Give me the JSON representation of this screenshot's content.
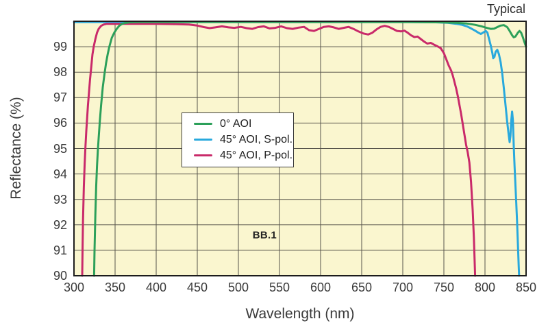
{
  "annotations": {
    "typical": "Typical",
    "chart_label": "BB.1",
    "chart_label_pos_nm": 532,
    "chart_label_pos_pct": 91.6
  },
  "axes": {
    "x": {
      "title": "Wavelength (nm)",
      "ticks": [
        300,
        350,
        400,
        450,
        500,
        550,
        600,
        650,
        700,
        750,
        800,
        850
      ]
    },
    "y": {
      "title": "Reflectance (%)",
      "ticks": [
        99,
        98,
        97,
        96,
        95,
        94,
        93,
        92,
        91,
        90
      ]
    }
  },
  "colors": {
    "plot_bg": "#faf6cf",
    "grid": "#57544b",
    "frame": "#1c1c1c",
    "text": "#3a3a3a",
    "legend_border": "#3a3a3a",
    "green": "#2ca05a",
    "cyan": "#29a9dd",
    "pink": "#c92a6a"
  },
  "chart_data": {
    "type": "line",
    "title": "Typical",
    "xlabel": "Wavelength (nm)",
    "ylabel": "Reflectance (%)",
    "xlim": [
      300,
      850
    ],
    "ylim": [
      90,
      100
    ],
    "grid": true,
    "grid_step_x_nm": 50,
    "grid_step_y_pct": 1,
    "legend_position": "upper-left-inside",
    "annotations": [
      {
        "text": "BB.1",
        "x": 532,
        "y": 91.6
      },
      {
        "text": "Typical",
        "position": "top-right-outside"
      }
    ],
    "series": [
      {
        "id": "0-aoi",
        "name": "0° AOI",
        "color": "#2ca05a",
        "points": [
          [
            324.5,
            90
          ],
          [
            325,
            91
          ],
          [
            326,
            92.4
          ],
          [
            327,
            93.5
          ],
          [
            328,
            94.3
          ],
          [
            329,
            94.9
          ],
          [
            330,
            95.4
          ],
          [
            331.5,
            96.1
          ],
          [
            333,
            96.7
          ],
          [
            335,
            97.4
          ],
          [
            337,
            97.9
          ],
          [
            339,
            98.35
          ],
          [
            341,
            98.7
          ],
          [
            343,
            99.0
          ],
          [
            346,
            99.35
          ],
          [
            349,
            99.55
          ],
          [
            352,
            99.7
          ],
          [
            355,
            99.82
          ],
          [
            358,
            99.89
          ],
          [
            362,
            99.93
          ],
          [
            368,
            99.96
          ],
          [
            380,
            99.97
          ],
          [
            420,
            99.97
          ],
          [
            480,
            99.97
          ],
          [
            540,
            99.97
          ],
          [
            600,
            99.97
          ],
          [
            660,
            99.97
          ],
          [
            710,
            99.97
          ],
          [
            745,
            99.96
          ],
          [
            765,
            99.94
          ],
          [
            778,
            99.91
          ],
          [
            788,
            99.86
          ],
          [
            796,
            99.8
          ],
          [
            802,
            99.74
          ],
          [
            807,
            99.7
          ],
          [
            811,
            99.71
          ],
          [
            815,
            99.77
          ],
          [
            819,
            99.83
          ],
          [
            823,
            99.85
          ],
          [
            827,
            99.77
          ],
          [
            830,
            99.62
          ],
          [
            833,
            99.45
          ],
          [
            835,
            99.37
          ],
          [
            837,
            99.4
          ],
          [
            840,
            99.55
          ],
          [
            842,
            99.62
          ],
          [
            844,
            99.55
          ],
          [
            846,
            99.38
          ],
          [
            848,
            99.18
          ],
          [
            850,
            99.0
          ]
        ]
      },
      {
        "id": "45-aoi-s-pol",
        "name": "45° AOI, S-pol.",
        "color": "#29a9dd",
        "points": [
          [
            300,
            99.97
          ],
          [
            600,
            99.97
          ],
          [
            700,
            99.97
          ],
          [
            740,
            99.96
          ],
          [
            755,
            99.94
          ],
          [
            765,
            99.9
          ],
          [
            772,
            99.86
          ],
          [
            778,
            99.8
          ],
          [
            783,
            99.72
          ],
          [
            788,
            99.63
          ],
          [
            792,
            99.55
          ],
          [
            795,
            99.5
          ],
          [
            798,
            99.56
          ],
          [
            801,
            99.62
          ],
          [
            803,
            99.55
          ],
          [
            805,
            99.3
          ],
          [
            807,
            99.05
          ],
          [
            809,
            98.75
          ],
          [
            810,
            98.55
          ],
          [
            811.5,
            98.6
          ],
          [
            813,
            98.8
          ],
          [
            815,
            98.88
          ],
          [
            817,
            98.7
          ],
          [
            819,
            98.4
          ],
          [
            821,
            97.95
          ],
          [
            823,
            97.35
          ],
          [
            825,
            96.7
          ],
          [
            827,
            96.05
          ],
          [
            829,
            95.5
          ],
          [
            830,
            95.25
          ],
          [
            831,
            95.5
          ],
          [
            832,
            96.1
          ],
          [
            833,
            96.45
          ],
          [
            834,
            96.1
          ],
          [
            835,
            95.1
          ],
          [
            836,
            94.3
          ],
          [
            837,
            93.6
          ],
          [
            838,
            92.9
          ],
          [
            839,
            92.15
          ],
          [
            840,
            91.3
          ],
          [
            841,
            90.4
          ],
          [
            841.5,
            90
          ]
        ]
      },
      {
        "id": "45-aoi-p-pol",
        "name": "45° AOI, P-pol.",
        "color": "#c92a6a",
        "points": [
          [
            310,
            90
          ],
          [
            310.5,
            91.2
          ],
          [
            311,
            92.2
          ],
          [
            312,
            93.5
          ],
          [
            313,
            94.4
          ],
          [
            314,
            95.1
          ],
          [
            315,
            95.7
          ],
          [
            316,
            96.2
          ],
          [
            317,
            96.7
          ],
          [
            318,
            97.1
          ],
          [
            319.5,
            97.7
          ],
          [
            321,
            98.2
          ],
          [
            322.5,
            98.7
          ],
          [
            324,
            99.0
          ],
          [
            326,
            99.3
          ],
          [
            328,
            99.55
          ],
          [
            330,
            99.7
          ],
          [
            333,
            99.82
          ],
          [
            336,
            99.87
          ],
          [
            340,
            99.9
          ],
          [
            360,
            99.9
          ],
          [
            380,
            99.9
          ],
          [
            400,
            99.9
          ],
          [
            420,
            99.89
          ],
          [
            440,
            99.87
          ],
          [
            450,
            99.83
          ],
          [
            458,
            99.77
          ],
          [
            465,
            99.73
          ],
          [
            472,
            99.76
          ],
          [
            480,
            99.8
          ],
          [
            488,
            99.76
          ],
          [
            495,
            99.74
          ],
          [
            503,
            99.78
          ],
          [
            510,
            99.73
          ],
          [
            517,
            99.7
          ],
          [
            524,
            99.77
          ],
          [
            531,
            99.8
          ],
          [
            538,
            99.72
          ],
          [
            545,
            99.74
          ],
          [
            552,
            99.8
          ],
          [
            559,
            99.73
          ],
          [
            566,
            99.7
          ],
          [
            573,
            99.75
          ],
          [
            580,
            99.78
          ],
          [
            586,
            99.65
          ],
          [
            592,
            99.62
          ],
          [
            598,
            99.7
          ],
          [
            604,
            99.78
          ],
          [
            610,
            99.8
          ],
          [
            616,
            99.76
          ],
          [
            622,
            99.7
          ],
          [
            628,
            99.74
          ],
          [
            634,
            99.78
          ],
          [
            640,
            99.7
          ],
          [
            646,
            99.6
          ],
          [
            652,
            99.52
          ],
          [
            658,
            99.48
          ],
          [
            663,
            99.55
          ],
          [
            668,
            99.68
          ],
          [
            673,
            99.78
          ],
          [
            678,
            99.82
          ],
          [
            683,
            99.78
          ],
          [
            688,
            99.7
          ],
          [
            693,
            99.62
          ],
          [
            698,
            99.6
          ],
          [
            702,
            99.63
          ],
          [
            706,
            99.55
          ],
          [
            710,
            99.45
          ],
          [
            714,
            99.38
          ],
          [
            718,
            99.4
          ],
          [
            722,
            99.3
          ],
          [
            726,
            99.2
          ],
          [
            730,
            99.12
          ],
          [
            734,
            99.15
          ],
          [
            738,
            99.08
          ],
          [
            742,
            99.02
          ],
          [
            746,
            98.95
          ],
          [
            750,
            98.75
          ],
          [
            753,
            98.5
          ],
          [
            756,
            98.25
          ],
          [
            759,
            98.05
          ],
          [
            761,
            97.85
          ],
          [
            763,
            97.6
          ],
          [
            765,
            97.35
          ],
          [
            767,
            97.05
          ],
          [
            769,
            96.7
          ],
          [
            771,
            96.35
          ],
          [
            773,
            95.95
          ],
          [
            775,
            95.55
          ],
          [
            777,
            95.15
          ],
          [
            779,
            94.85
          ],
          [
            781,
            94.45
          ],
          [
            783,
            93.7
          ],
          [
            785,
            92.6
          ],
          [
            786.5,
            91.5
          ],
          [
            788,
            90
          ]
        ]
      }
    ]
  }
}
